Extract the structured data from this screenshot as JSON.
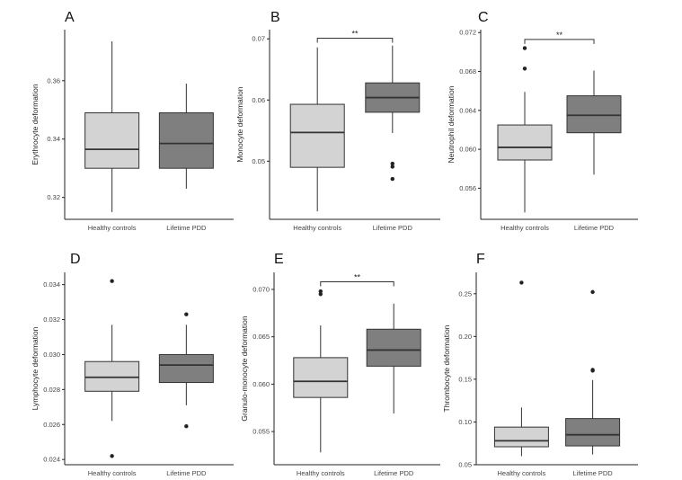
{
  "figure": {
    "type": "box-plot-grid"
  },
  "chart_data": [
    {
      "type": "box",
      "title": "A",
      "xlabel": "",
      "ylabel": "Erythrocyte deformation",
      "categories": [
        "Healthy controls",
        "Lifetime PDD"
      ],
      "ylim": [
        0.3125,
        0.3775
      ],
      "yticks": [
        0.32,
        0.34,
        0.36
      ],
      "ytick_labels": [
        "0.32",
        "0.34",
        "0.36"
      ],
      "colors": [
        "#d3d3d3",
        "#7f7f7f"
      ],
      "boxes": [
        {
          "min": 0.315,
          "q1": 0.33,
          "median": 0.3365,
          "q3": 0.349,
          "max": 0.3735,
          "outliers": []
        },
        {
          "min": 0.323,
          "q1": 0.33,
          "median": 0.3385,
          "q3": 0.349,
          "max": 0.359,
          "outliers": []
        }
      ],
      "significance": null
    },
    {
      "type": "box",
      "title": "B",
      "xlabel": "",
      "ylabel": "Monocyte deformation",
      "categories": [
        "Healthy controls",
        "Lifetime PDD"
      ],
      "ylim": [
        0.0405,
        0.0715
      ],
      "yticks": [
        0.05,
        0.06,
        0.07
      ],
      "ytick_labels": [
        "0.05",
        "0.06",
        "0.07"
      ],
      "colors": [
        "#d3d3d3",
        "#7f7f7f"
      ],
      "boxes": [
        {
          "min": 0.0418,
          "q1": 0.049,
          "median": 0.0547,
          "q3": 0.0593,
          "max": 0.0686,
          "outliers": []
        },
        {
          "min": 0.0546,
          "q1": 0.058,
          "median": 0.0604,
          "q3": 0.0628,
          "max": 0.0689,
          "outliers": [
            0.0496,
            0.0491,
            0.0471
          ]
        }
      ],
      "significance": {
        "label": "**",
        "level": 0.0701
      }
    },
    {
      "type": "box",
      "title": "C",
      "xlabel": "",
      "ylabel": "Neutrophil deformation",
      "categories": [
        "Healthy controls",
        "Lifetime PDD"
      ],
      "ylim": [
        0.0528,
        0.0723
      ],
      "yticks": [
        0.056,
        0.06,
        0.064,
        0.068,
        0.072
      ],
      "ytick_labels": [
        "0.056",
        "0.060",
        "0.064",
        "0.068",
        "0.072"
      ],
      "colors": [
        "#d3d3d3",
        "#7f7f7f"
      ],
      "boxes": [
        {
          "min": 0.0535,
          "q1": 0.0589,
          "median": 0.0602,
          "q3": 0.0625,
          "max": 0.0659,
          "outliers": [
            0.0683,
            0.0704
          ]
        },
        {
          "min": 0.0574,
          "q1": 0.0617,
          "median": 0.0635,
          "q3": 0.0655,
          "max": 0.0681,
          "outliers": []
        }
      ],
      "significance": {
        "label": "**",
        "level": 0.0713
      }
    },
    {
      "type": "box",
      "title": "D",
      "xlabel": "",
      "ylabel": "Lymphocyte deformation",
      "categories": [
        "Healthy controls",
        "Lifetime PDD"
      ],
      "ylim": [
        0.0237,
        0.0347
      ],
      "yticks": [
        0.024,
        0.026,
        0.028,
        0.03,
        0.032,
        0.034
      ],
      "ytick_labels": [
        "0.024",
        "0.026",
        "0.028",
        "0.030",
        "0.032",
        "0.034"
      ],
      "colors": [
        "#d3d3d3",
        "#7f7f7f"
      ],
      "boxes": [
        {
          "min": 0.0262,
          "q1": 0.0279,
          "median": 0.0287,
          "q3": 0.0296,
          "max": 0.0317,
          "outliers": [
            0.0342,
            0.0242
          ]
        },
        {
          "min": 0.0271,
          "q1": 0.0284,
          "median": 0.0294,
          "q3": 0.03,
          "max": 0.0317,
          "outliers": [
            0.0323,
            0.0259
          ]
        }
      ],
      "significance": null
    },
    {
      "type": "box",
      "title": "E",
      "xlabel": "",
      "ylabel": "Granulo-monocyte deformation",
      "categories": [
        "Healthy controls",
        "Lifetime PDD"
      ],
      "ylim": [
        0.0515,
        0.0718
      ],
      "yticks": [
        0.055,
        0.06,
        0.065,
        0.07
      ],
      "ytick_labels": [
        "0.055",
        "0.060",
        "0.065",
        "0.070"
      ],
      "colors": [
        "#d3d3d3",
        "#7f7f7f"
      ],
      "boxes": [
        {
          "min": 0.0528,
          "q1": 0.0586,
          "median": 0.0603,
          "q3": 0.0628,
          "max": 0.0662,
          "outliers": [
            0.0695,
            0.0698
          ]
        },
        {
          "min": 0.0569,
          "q1": 0.0619,
          "median": 0.0636,
          "q3": 0.0658,
          "max": 0.0685,
          "outliers": []
        }
      ],
      "significance": {
        "label": "**",
        "level": 0.0708
      }
    },
    {
      "type": "box",
      "title": "F",
      "xlabel": "",
      "ylabel": "Thrombocyte deformation",
      "categories": [
        "Healthy controls",
        "Lifetime PDD"
      ],
      "ylim": [
        0.05,
        0.275
      ],
      "yticks": [
        0.05,
        0.1,
        0.15,
        0.2,
        0.25
      ],
      "ytick_labels": [
        "0.05",
        "0.10",
        "0.15",
        "0.20",
        "0.25"
      ],
      "colors": [
        "#d3d3d3",
        "#7f7f7f"
      ],
      "boxes": [
        {
          "min": 0.06,
          "q1": 0.071,
          "median": 0.078,
          "q3": 0.094,
          "max": 0.117,
          "outliers": [
            0.263
          ]
        },
        {
          "min": 0.062,
          "q1": 0.072,
          "median": 0.085,
          "q3": 0.104,
          "max": 0.149,
          "outliers": [
            0.252,
            0.16,
            0.161
          ]
        }
      ],
      "significance": null
    }
  ]
}
